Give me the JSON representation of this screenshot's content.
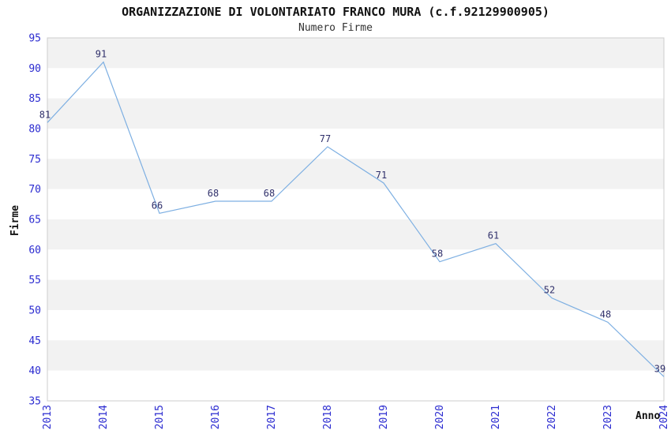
{
  "chart_data": {
    "type": "line",
    "title": "ORGANIZZAZIONE DI VOLONTARIATO FRANCO MURA (c.f.92129900905)",
    "subtitle": "Numero Firme",
    "xlabel": "Anno",
    "ylabel": "Firme",
    "categories": [
      "2013",
      "2014",
      "2015",
      "2016",
      "2017",
      "2018",
      "2019",
      "2020",
      "2021",
      "2022",
      "2023",
      "2024"
    ],
    "values": [
      81,
      91,
      66,
      68,
      68,
      77,
      71,
      58,
      61,
      52,
      48,
      39
    ],
    "ylim": [
      35,
      95
    ],
    "ytick_step": 5,
    "yticks": [
      35,
      40,
      45,
      50,
      55,
      60,
      65,
      70,
      75,
      80,
      85,
      90,
      95
    ],
    "grid": "alternating-horizontal-bands",
    "legend": "none",
    "colors": {
      "line": "#7dafe2",
      "tick_label": "#2b2bd0",
      "data_label": "#30306b",
      "band_gray": "#f2f2f2",
      "band_white": "#ffffff",
      "plot_border": "#cccccc",
      "title": "#111111",
      "subtitle": "#333333",
      "axis_title": "#111111",
      "background": "#ffffff"
    }
  }
}
